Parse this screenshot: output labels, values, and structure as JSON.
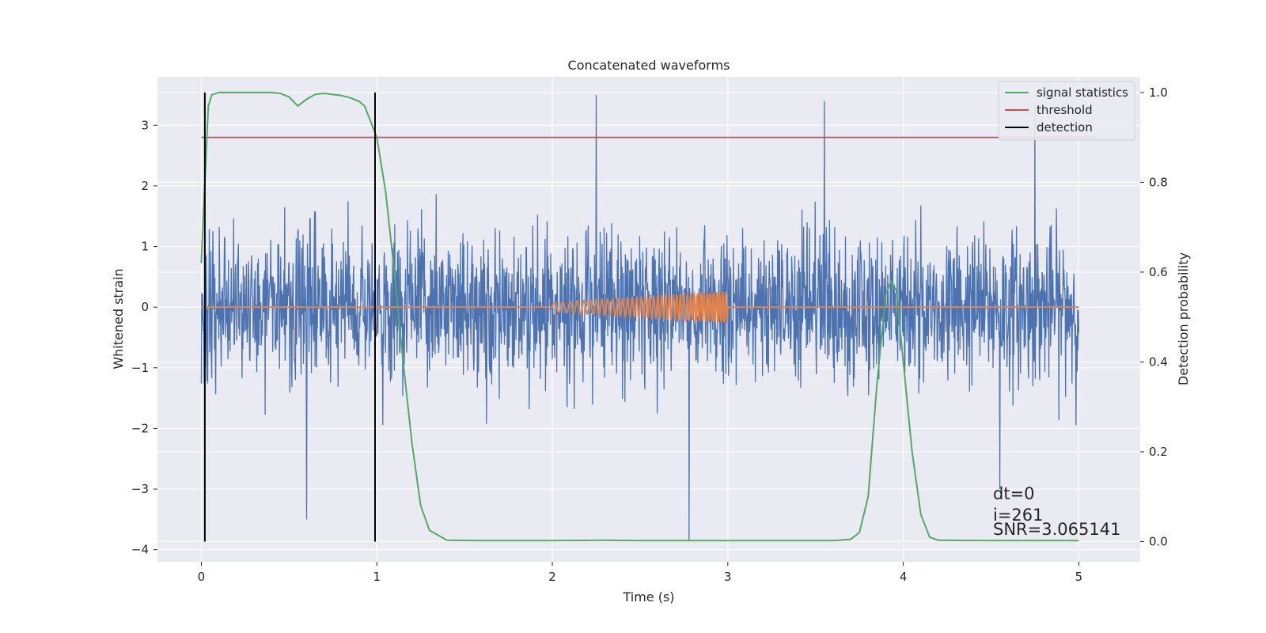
{
  "chart_data": {
    "type": "line",
    "title": "Concatenated waveforms",
    "xlabel": "Time (s)",
    "ylabel": "Whitened strain",
    "ylabel_right": "Detection probability",
    "xlim": [
      -0.25,
      5.35
    ],
    "ylim": [
      -4.2,
      3.8
    ],
    "ylim_right": [
      -0.045,
      1.035
    ],
    "xticks": [
      0,
      1,
      2,
      3,
      4,
      5
    ],
    "yticks": [
      -4,
      -3,
      -2,
      -1,
      0,
      1,
      2,
      3
    ],
    "yticks_right": [
      0.0,
      0.2,
      0.4,
      0.6,
      0.8,
      1.0
    ],
    "grid": true,
    "legend_position": "top-right",
    "colors": {
      "strain": "#4c72b0",
      "template": "#dd8452",
      "signal_statistics": "#55a868",
      "threshold": "#c44e52",
      "detection": "#000000",
      "background": "#eaeaf2",
      "grid": "#ffffff"
    },
    "legend": [
      {
        "name": "signal statistics",
        "color": "#55a868"
      },
      {
        "name": "threshold",
        "color": "#c44e52"
      },
      {
        "name": "detection",
        "color": "#000000"
      }
    ],
    "series": [
      {
        "name": "signal statistics",
        "axis": "right",
        "x": [
          0.0,
          0.02,
          0.04,
          0.06,
          0.1,
          0.2,
          0.3,
          0.4,
          0.45,
          0.5,
          0.55,
          0.6,
          0.65,
          0.7,
          0.8,
          0.85,
          0.9,
          0.93,
          0.96,
          1.0,
          1.05,
          1.1,
          1.15,
          1.2,
          1.25,
          1.3,
          1.4,
          1.6,
          1.8,
          2.0,
          2.3,
          2.5,
          2.8,
          3.0,
          3.3,
          3.6,
          3.7,
          3.75,
          3.8,
          3.85,
          3.9,
          3.93,
          3.96,
          4.0,
          4.05,
          4.1,
          4.15,
          4.2,
          4.5,
          5.0
        ],
        "y": [
          0.62,
          0.8,
          0.97,
          0.995,
          1.0,
          1.0,
          1.0,
          1.0,
          0.998,
          0.99,
          0.97,
          0.985,
          0.996,
          0.998,
          0.993,
          0.988,
          0.98,
          0.97,
          0.94,
          0.9,
          0.78,
          0.6,
          0.4,
          0.22,
          0.08,
          0.025,
          0.003,
          0.002,
          0.002,
          0.002,
          0.003,
          0.002,
          0.002,
          0.002,
          0.002,
          0.002,
          0.005,
          0.02,
          0.1,
          0.35,
          0.55,
          0.58,
          0.56,
          0.4,
          0.2,
          0.06,
          0.01,
          0.003,
          0.002,
          0.002
        ]
      },
      {
        "name": "threshold",
        "axis": "right",
        "x": [
          0.0,
          5.1
        ],
        "y": [
          0.9,
          0.9
        ]
      },
      {
        "name": "detection",
        "axis": "right",
        "type": "vlines",
        "x": [
          0.02,
          0.99
        ],
        "y": [
          0.0,
          1.0
        ]
      },
      {
        "axis": "left",
        "type": "noise",
        "x_range": [
          0.0,
          5.0
        ],
        "sigma": 0.62,
        "peaks": [
          {
            "x": 0.6,
            "y": -3.5
          },
          {
            "x": 2.25,
            "y": 3.5
          },
          {
            "x": 2.78,
            "y": -3.85
          },
          {
            "x": 3.55,
            "y": 3.4
          },
          {
            "x": 4.75,
            "y": 3.35
          },
          {
            "x": 4.55,
            "y": -3.0
          }
        ]
      },
      {
        "axis": "left",
        "type": "chirp",
        "x": [
          0.0,
          5.0
        ],
        "chirp_range": [
          2.0,
          3.0
        ],
        "amplitude_range": [
          0.08,
          0.25
        ],
        "frequency_range": [
          20,
          60
        ]
      }
    ],
    "annotations": [
      "dt=0",
      "i=261",
      "SNR=3.065141"
    ]
  }
}
